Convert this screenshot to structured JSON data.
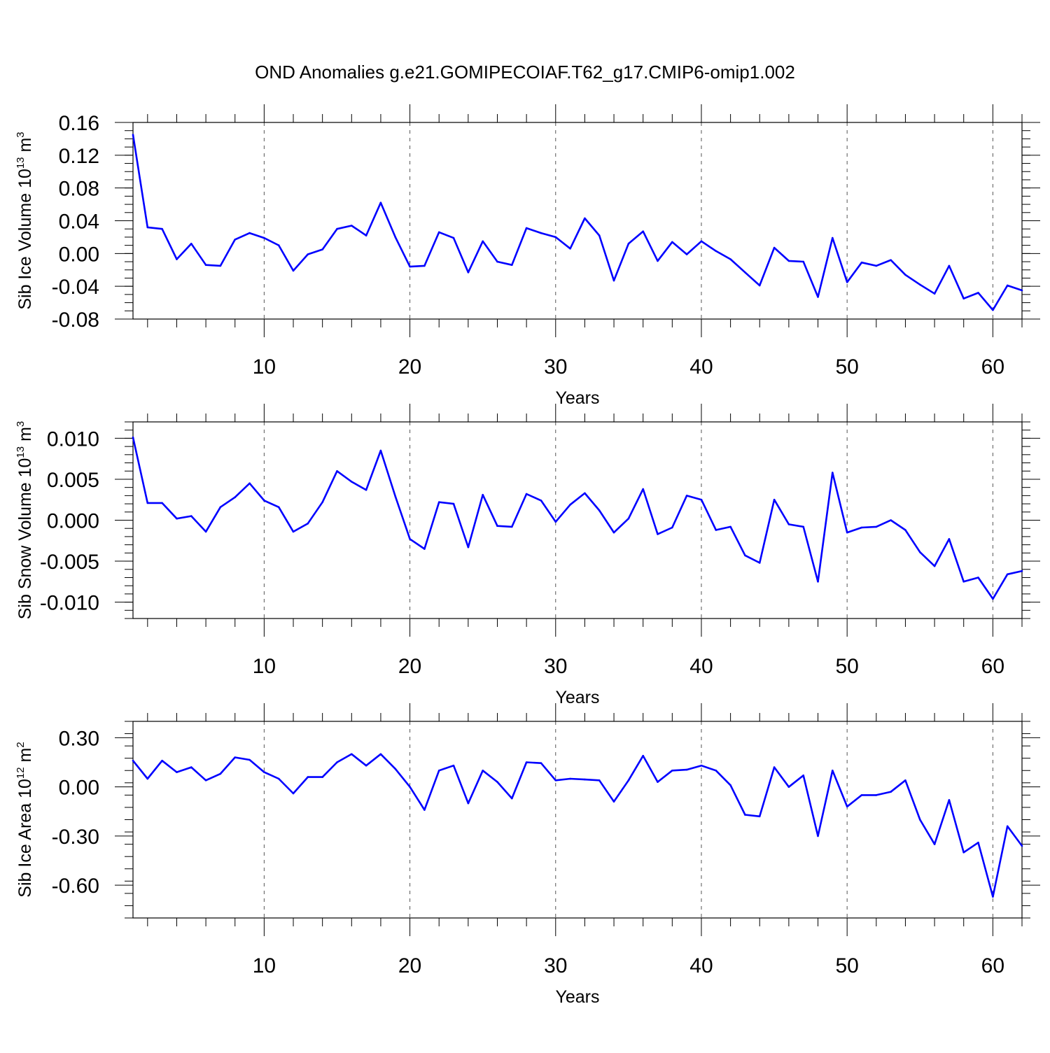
{
  "title": "OND Anomalies g.e21.GOMIPECOIAF.T62_g17.CMIP6-omip1.002",
  "colors": {
    "series": "#0000ff",
    "frame": "#000000",
    "grid": "#555555"
  },
  "chart_data": [
    {
      "type": "line",
      "xlabel": "Years",
      "ylabel_main": "Sib Ice Volume 10",
      "ylabel_exp": "13",
      "ylabel_unit": " m",
      "ylabel_unit_exp": "3",
      "xlim": [
        1,
        62
      ],
      "ylim": [
        -0.08,
        0.16
      ],
      "yticks": [
        -0.08,
        -0.04,
        0.0,
        0.04,
        0.08,
        0.12,
        0.16
      ],
      "ytick_labels": [
        "-0.08",
        "-0.04",
        "0.00",
        "0.04",
        "0.08",
        "0.12",
        "0.16"
      ],
      "yminor_step": 0.01,
      "xticks": [
        10,
        20,
        30,
        40,
        50,
        60
      ],
      "xtick_labels": [
        "10",
        "20",
        "30",
        "40",
        "50",
        "60"
      ],
      "grid": "dashed vertical at major x ticks",
      "series": [
        {
          "name": "Sib Ice Volume",
          "x": [
            1,
            2,
            3,
            4,
            5,
            6,
            7,
            8,
            9,
            10,
            11,
            12,
            13,
            14,
            15,
            16,
            17,
            18,
            19,
            20,
            21,
            22,
            23,
            24,
            25,
            26,
            27,
            28,
            29,
            30,
            31,
            32,
            33,
            34,
            35,
            36,
            37,
            38,
            39,
            40,
            41,
            42,
            43,
            44,
            45,
            46,
            47,
            48,
            49,
            50,
            51,
            52,
            53,
            54,
            55,
            56,
            57,
            58,
            59,
            60,
            61,
            62
          ],
          "values": [
            0.145,
            0.032,
            0.03,
            -0.007,
            0.012,
            -0.014,
            -0.015,
            0.017,
            0.025,
            0.019,
            0.01,
            -0.021,
            -0.001,
            0.005,
            0.03,
            0.034,
            0.022,
            0.062,
            0.02,
            -0.016,
            -0.015,
            0.026,
            0.019,
            -0.023,
            0.015,
            -0.01,
            -0.014,
            0.031,
            0.025,
            0.02,
            0.006,
            0.043,
            0.022,
            -0.033,
            0.012,
            0.027,
            -0.009,
            0.014,
            -0.001,
            0.015,
            0.003,
            -0.007,
            -0.023,
            -0.039,
            0.007,
            -0.009,
            -0.01,
            -0.053,
            0.019,
            -0.035,
            -0.011,
            -0.015,
            -0.008,
            -0.026,
            -0.038,
            -0.049,
            -0.015,
            -0.055,
            -0.048,
            -0.069,
            -0.039,
            -0.045
          ]
        }
      ]
    },
    {
      "type": "line",
      "xlabel": "Years",
      "ylabel_main": "Sib Snow Volume 10",
      "ylabel_exp": "13",
      "ylabel_unit": " m",
      "ylabel_unit_exp": "3",
      "xlim": [
        1,
        62
      ],
      "ylim": [
        -0.012,
        0.012
      ],
      "yticks": [
        -0.01,
        -0.005,
        0.0,
        0.005,
        0.01
      ],
      "ytick_labels": [
        "-0.010",
        "-0.005",
        "0.000",
        "0.005",
        "0.010"
      ],
      "yminor_step": 0.001,
      "xticks": [
        10,
        20,
        30,
        40,
        50,
        60
      ],
      "xtick_labels": [
        "10",
        "20",
        "30",
        "40",
        "50",
        "60"
      ],
      "grid": "dashed vertical at major x ticks",
      "series": [
        {
          "name": "Sib Snow Volume",
          "x": [
            1,
            2,
            3,
            4,
            5,
            6,
            7,
            8,
            9,
            10,
            11,
            12,
            13,
            14,
            15,
            16,
            17,
            18,
            19,
            20,
            21,
            22,
            23,
            24,
            25,
            26,
            27,
            28,
            29,
            30,
            31,
            32,
            33,
            34,
            35,
            36,
            37,
            38,
            39,
            40,
            41,
            42,
            43,
            44,
            45,
            46,
            47,
            48,
            49,
            50,
            51,
            52,
            53,
            54,
            55,
            56,
            57,
            58,
            59,
            60,
            61,
            62
          ],
          "values": [
            0.0101,
            0.0021,
            0.0021,
            0.0002,
            0.0005,
            -0.0014,
            0.0016,
            0.0028,
            0.0045,
            0.0024,
            0.0016,
            -0.0014,
            -0.0004,
            0.0022,
            0.006,
            0.0047,
            0.0037,
            0.0085,
            0.0029,
            -0.0023,
            -0.0035,
            0.0022,
            0.002,
            -0.0033,
            0.0031,
            -0.0007,
            -0.0008,
            0.0032,
            0.0024,
            -0.0002,
            0.0019,
            0.0033,
            0.0012,
            -0.0015,
            0.0002,
            0.0038,
            -0.0017,
            -0.0009,
            0.003,
            0.0025,
            -0.0012,
            -0.0008,
            -0.0043,
            -0.0052,
            0.0025,
            -0.0005,
            -0.0008,
            -0.0075,
            0.0058,
            -0.0015,
            -0.0009,
            -0.0008,
            0.0,
            -0.0012,
            -0.0039,
            -0.0056,
            -0.0023,
            -0.0075,
            -0.007,
            -0.0096,
            -0.0066,
            -0.0062
          ]
        }
      ]
    },
    {
      "type": "line",
      "xlabel": "Years",
      "ylabel_main": "Sib Ice Area 10",
      "ylabel_exp": "12",
      "ylabel_unit": " m",
      "ylabel_unit_exp": "2",
      "xlim": [
        1,
        62
      ],
      "ylim": [
        -0.8,
        0.4
      ],
      "yticks": [
        -0.6,
        -0.3,
        0.0,
        0.3
      ],
      "ytick_labels": [
        "-0.60",
        "-0.30",
        "0.00",
        "0.30"
      ],
      "yminor_step": 0.075,
      "xticks": [
        10,
        20,
        30,
        40,
        50,
        60
      ],
      "xtick_labels": [
        "10",
        "20",
        "30",
        "40",
        "50",
        "60"
      ],
      "grid": "dashed vertical at major x ticks",
      "series": [
        {
          "name": "Sib Ice Area",
          "x": [
            1,
            2,
            3,
            4,
            5,
            6,
            7,
            8,
            9,
            10,
            11,
            12,
            13,
            14,
            15,
            16,
            17,
            18,
            19,
            20,
            21,
            22,
            23,
            24,
            25,
            26,
            27,
            28,
            29,
            30,
            31,
            32,
            33,
            34,
            35,
            36,
            37,
            38,
            39,
            40,
            41,
            42,
            43,
            44,
            45,
            46,
            47,
            48,
            49,
            50,
            51,
            52,
            53,
            54,
            55,
            56,
            57,
            58,
            59,
            60,
            61,
            62
          ],
          "values": [
            0.16,
            0.05,
            0.16,
            0.09,
            0.12,
            0.04,
            0.08,
            0.18,
            0.165,
            0.09,
            0.05,
            -0.04,
            0.06,
            0.06,
            0.15,
            0.2,
            0.13,
            0.2,
            0.11,
            0.0,
            -0.14,
            0.1,
            0.13,
            -0.1,
            0.1,
            0.03,
            -0.07,
            0.15,
            0.145,
            0.04,
            0.05,
            0.045,
            0.04,
            -0.09,
            0.04,
            0.19,
            0.03,
            0.1,
            0.105,
            0.13,
            0.1,
            0.01,
            -0.17,
            -0.18,
            0.12,
            0.0,
            0.07,
            -0.3,
            0.1,
            -0.12,
            -0.05,
            -0.05,
            -0.03,
            0.04,
            -0.2,
            -0.35,
            -0.08,
            -0.4,
            -0.34,
            -0.67,
            -0.24,
            -0.36
          ]
        }
      ]
    }
  ]
}
